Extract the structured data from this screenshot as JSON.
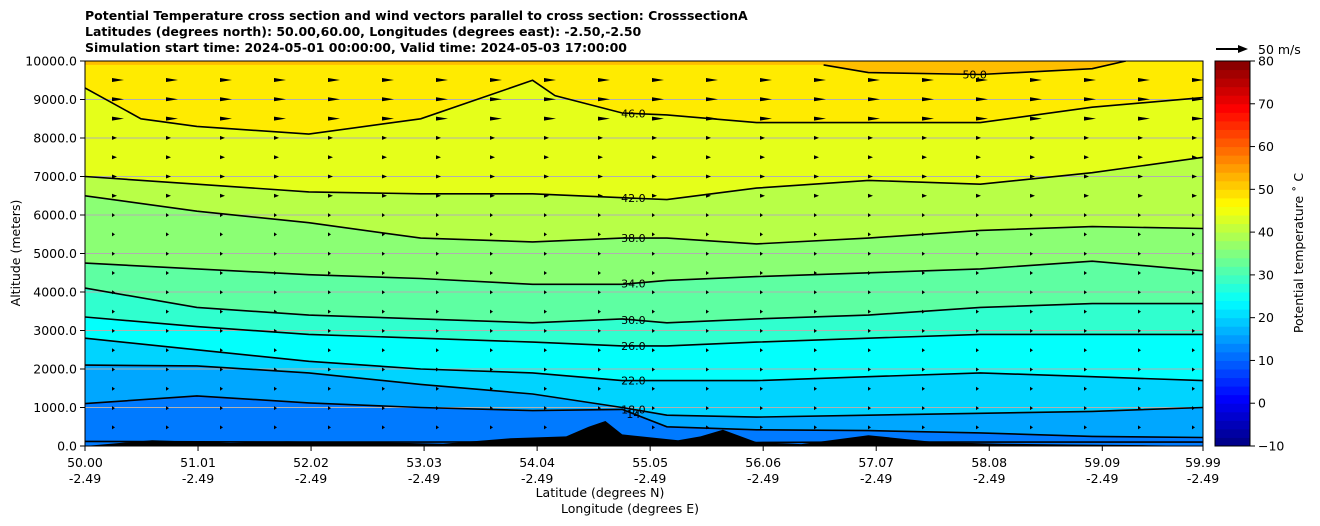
{
  "chart_data": {
    "type": "contour",
    "title_lines": [
      "Potential Temperature cross section and wind vectors parallel to cross section: CrosssectionA",
      "Latitudes (degrees north): 50.00,60.00, Longitudes (degrees east): -2.50,-2.50",
      "Simulation start time: 2024-05-01 00:00:00, Valid time: 2024-05-03 17:00:00"
    ],
    "ylabel": "Altitude (meters)",
    "xlabel_lines": [
      "Latitude (degrees N)",
      "Longitude (degrees E)"
    ],
    "xlim": [
      50.0,
      59.99
    ],
    "ylim": [
      0,
      10000
    ],
    "x_ticks": [
      50.0,
      51.01,
      52.02,
      53.03,
      54.04,
      55.05,
      56.06,
      57.07,
      58.08,
      59.09,
      59.99
    ],
    "x_tick_labels": [
      "50.00",
      "51.01",
      "52.02",
      "53.03",
      "54.04",
      "55.05",
      "56.06",
      "57.07",
      "58.08",
      "59.09",
      "59.99"
    ],
    "x_tick_labels_lon": [
      "-2.49",
      "-2.49",
      "-2.49",
      "-2.49",
      "-2.49",
      "-2.49",
      "-2.49",
      "-2.49",
      "-2.49",
      "-2.49",
      "-2.49"
    ],
    "y_ticks": [
      0,
      1000,
      2000,
      3000,
      4000,
      5000,
      6000,
      7000,
      8000,
      9000,
      10000
    ],
    "y_tick_labels": [
      "0.0",
      "1000.0",
      "2000.0",
      "3000.0",
      "4000.0",
      "5000.0",
      "6000.0",
      "7000.0",
      "8000.0",
      "9000.0",
      "10000.0"
    ],
    "grid": "horizontal",
    "colorbar": {
      "label": "Potential temperature ˚ C",
      "range": [
        -10,
        80
      ],
      "ticks": [
        -10,
        0,
        10,
        20,
        30,
        40,
        50,
        60,
        70,
        80
      ],
      "tick_labels": [
        "−10",
        "0",
        "10",
        "20",
        "30",
        "40",
        "50",
        "60",
        "70",
        "80"
      ]
    },
    "quiver_key": {
      "label": "50 m/s",
      "speed": 50
    },
    "contours": [
      {
        "level": 10,
        "label": "10",
        "lat": [
          50.0,
          51.0,
          52.0,
          53.0,
          54.0,
          55.0,
          56.0,
          57.0,
          58.0,
          59.0,
          59.99
        ],
        "alt": [
          120,
          110,
          100,
          100,
          110,
          100,
          90,
          100,
          100,
          100,
          100
        ]
      },
      {
        "level": 14,
        "label": "14",
        "lat": [
          50.0,
          51.0,
          52.0,
          53.0,
          54.0,
          54.8,
          55.2,
          56.0,
          57.0,
          58.0,
          59.0,
          59.99
        ],
        "alt": [
          1100,
          1300,
          1120,
          1000,
          920,
          950,
          500,
          420,
          400,
          340,
          250,
          220
        ]
      },
      {
        "level": 18,
        "label": "18.0",
        "lat": [
          50.0,
          51.0,
          52.0,
          53.0,
          54.0,
          54.8,
          55.2,
          56.0,
          57.0,
          58.0,
          59.0,
          59.99
        ],
        "alt": [
          2100,
          2080,
          1900,
          1600,
          1350,
          1000,
          800,
          750,
          800,
          850,
          900,
          1000
        ]
      },
      {
        "level": 22,
        "label": "22.0",
        "lat": [
          50.0,
          51.0,
          52.0,
          53.0,
          54.0,
          54.8,
          55.2,
          56.0,
          57.0,
          58.0,
          59.0,
          59.99
        ],
        "alt": [
          2800,
          2500,
          2200,
          2000,
          1900,
          1700,
          1700,
          1700,
          1800,
          1900,
          1800,
          1700
        ]
      },
      {
        "level": 26,
        "label": "26.0",
        "lat": [
          50.0,
          51.0,
          52.0,
          53.0,
          54.0,
          54.8,
          55.2,
          56.0,
          57.0,
          58.0,
          59.0,
          59.99
        ],
        "alt": [
          3350,
          3100,
          2900,
          2800,
          2700,
          2600,
          2600,
          2700,
          2800,
          2900,
          2900,
          2900
        ]
      },
      {
        "level": 30,
        "label": "30.0",
        "lat": [
          50.0,
          51.0,
          52.0,
          53.0,
          54.0,
          54.8,
          55.2,
          56.0,
          57.0,
          58.0,
          59.0,
          59.99
        ],
        "alt": [
          4100,
          3600,
          3400,
          3300,
          3200,
          3300,
          3200,
          3300,
          3400,
          3600,
          3700,
          3700
        ]
      },
      {
        "level": 34,
        "label": "34.0",
        "lat": [
          50.0,
          51.0,
          52.0,
          53.0,
          54.0,
          54.8,
          55.2,
          56.0,
          57.0,
          58.0,
          59.0,
          59.99
        ],
        "alt": [
          4750,
          4600,
          4450,
          4350,
          4200,
          4200,
          4300,
          4400,
          4500,
          4600,
          4800,
          4550
        ]
      },
      {
        "level": 38,
        "label": "38.0",
        "lat": [
          50.0,
          51.0,
          52.0,
          53.0,
          54.0,
          54.8,
          55.2,
          56.0,
          57.0,
          58.0,
          59.0,
          59.99
        ],
        "alt": [
          6500,
          6100,
          5800,
          5400,
          5300,
          5400,
          5400,
          5250,
          5400,
          5600,
          5700,
          5650
        ]
      },
      {
        "level": 42,
        "label": "42.0",
        "lat": [
          50.0,
          51.0,
          52.0,
          53.0,
          54.0,
          54.8,
          55.2,
          56.0,
          57.0,
          58.0,
          59.0,
          59.99
        ],
        "alt": [
          7000,
          6800,
          6600,
          6550,
          6550,
          6450,
          6400,
          6700,
          6900,
          6800,
          7100,
          7500
        ]
      },
      {
        "level": 46,
        "label": "46.0",
        "lat": [
          50.0,
          50.5,
          51.0,
          52.0,
          53.0,
          54.0,
          54.2,
          54.8,
          55.2,
          56.0,
          57.0,
          58.0,
          59.0,
          59.99
        ],
        "alt": [
          9300,
          8500,
          8300,
          8100,
          8500,
          9500,
          9100,
          8650,
          8600,
          8400,
          8400,
          8400,
          8800,
          9050
        ]
      },
      {
        "level": 50,
        "label": "50.0",
        "lat": [
          56.6,
          57.0,
          58.0,
          59.0,
          59.3
        ],
        "alt": [
          9900,
          9700,
          9650,
          9800,
          10000
        ]
      }
    ],
    "terrain": [
      {
        "lat": [
          50.0,
          50.6,
          51.3,
          51.8,
          52.5,
          53.2,
          53.8,
          54.3,
          54.5,
          54.65,
          54.8,
          55.3,
          55.5,
          55.7,
          56.0,
          56.4,
          57.0,
          57.6,
          58.2,
          58.8,
          59.5,
          59.99
        ],
        "alt": [
          0,
          150,
          80,
          120,
          100,
          60,
          200,
          250,
          500,
          650,
          300,
          150,
          250,
          420,
          100,
          50,
          280,
          100,
          60,
          40,
          20,
          0
        ]
      }
    ],
    "filled_bands": [
      {
        "t_low": 10,
        "t_high": 14
      },
      {
        "t_low": 14,
        "t_high": 18
      },
      {
        "t_low": 18,
        "t_high": 22
      },
      {
        "t_low": 22,
        "t_high": 26
      },
      {
        "t_low": 26,
        "t_high": 30
      },
      {
        "t_low": 30,
        "t_high": 34
      },
      {
        "t_low": 34,
        "t_high": 38
      },
      {
        "t_low": 38,
        "t_high": 42
      },
      {
        "t_low": 42,
        "t_high": 46
      },
      {
        "t_low": 46,
        "t_high": 50
      },
      {
        "t_low": 50,
        "t_high": 54
      }
    ]
  }
}
